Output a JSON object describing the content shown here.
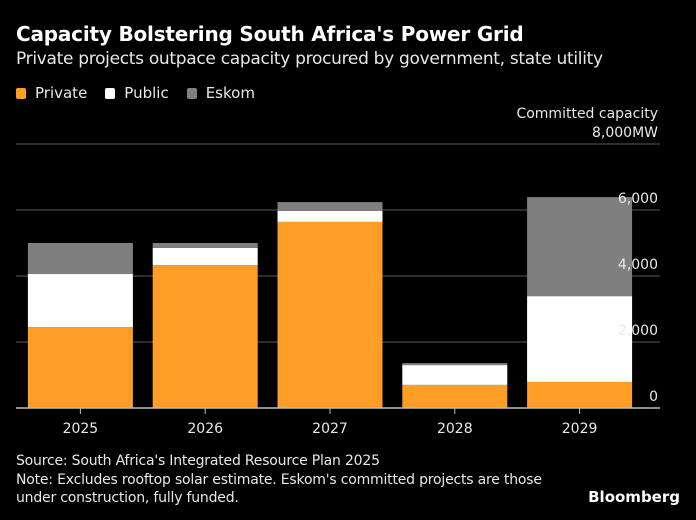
{
  "chart_data": {
    "type": "bar",
    "stacked": true,
    "title": "Capacity Bolstering South Africa's Power Grid",
    "subtitle": "Private projects outpace capacity procured by government, state utility",
    "ylabel": "Committed capacity",
    "yunit": "MW",
    "xlabel": "",
    "categories": [
      "2025",
      "2026",
      "2027",
      "2028",
      "2029"
    ],
    "series": [
      {
        "name": "Private",
        "color": "#FF9E27",
        "values": [
          2450,
          4330,
          5640,
          700,
          790
        ]
      },
      {
        "name": "Public",
        "color": "#FFFFFF",
        "values": [
          1610,
          520,
          330,
          600,
          2600
        ]
      },
      {
        "name": "Eskom",
        "color": "#7F7F7F",
        "values": [
          940,
          150,
          270,
          60,
          3000
        ]
      }
    ],
    "ylim": [
      0,
      8000
    ],
    "yticks": [
      0,
      2000,
      4000,
      6000,
      8000
    ],
    "ytick_labels": [
      "0",
      "2,000",
      "4,000",
      "6,000",
      "8,000MW"
    ],
    "grid": true,
    "legend_position": "top-left",
    "axis_position": "right"
  },
  "footer": {
    "source": "Source: South Africa's Integrated Resource Plan 2025",
    "note_line1": "Note: Excludes rooftop solar estimate. Eskom's committed projects are those",
    "note_line2": "under construction, fully funded.",
    "brand": "Bloomberg"
  }
}
